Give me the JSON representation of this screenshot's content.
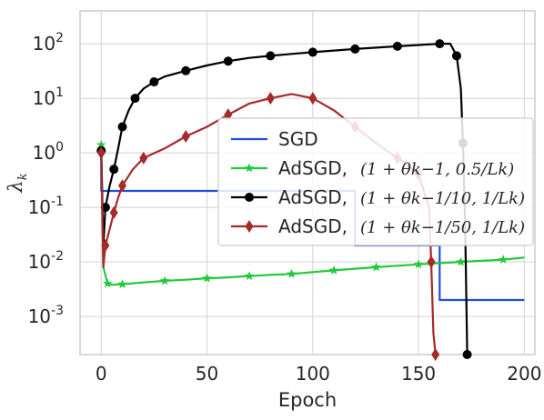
{
  "chart_data": {
    "type": "line",
    "title": "",
    "xlabel": "Epoch",
    "ylabel": "λ_k",
    "yscale": "log",
    "xlim": [
      -10,
      205
    ],
    "ylim": [
      0.0002,
      400
    ],
    "xticks": [
      0,
      50,
      100,
      150,
      200
    ],
    "xtick_labels": [
      "0",
      "50",
      "100",
      "150",
      "200"
    ],
    "yticks": [
      0.001,
      0.01,
      0.1,
      1,
      10,
      100
    ],
    "ytick_labels": [
      {
        "base": "10",
        "exp": "-3"
      },
      {
        "base": "10",
        "exp": "-2"
      },
      {
        "base": "10",
        "exp": "-1"
      },
      {
        "base": "10",
        "exp": "0"
      },
      {
        "base": "10",
        "exp": "1"
      },
      {
        "base": "10",
        "exp": "2"
      }
    ],
    "grid": true,
    "legend_position": "center-right",
    "series": [
      {
        "name": "SGD",
        "suffix": "",
        "color": "#1f4fd8",
        "marker": "none",
        "x": [
          0,
          0,
          120,
          120,
          160,
          160,
          200
        ],
        "y": [
          1.0,
          0.2,
          0.2,
          0.02,
          0.02,
          0.002,
          0.002
        ]
      },
      {
        "name": "AdSGD,",
        "suffix": "(1 + θk−1, 0.5/Lk)",
        "color": "#22c93a",
        "marker": "star",
        "x": [
          0,
          1,
          3,
          5,
          10,
          20,
          30,
          40,
          50,
          60,
          70,
          80,
          90,
          100,
          110,
          120,
          130,
          140,
          150,
          160,
          170,
          180,
          190,
          200
        ],
        "y": [
          1.4,
          0.008,
          0.004,
          0.0038,
          0.0039,
          0.0042,
          0.0045,
          0.0047,
          0.005,
          0.0052,
          0.0055,
          0.0058,
          0.006,
          0.0065,
          0.007,
          0.0075,
          0.008,
          0.0085,
          0.009,
          0.0095,
          0.01,
          0.0105,
          0.011,
          0.012
        ]
      },
      {
        "name": "AdSGD,",
        "suffix": "(1 + θk−1/10, 1/Lk)",
        "color": "#000000",
        "marker": "circle",
        "x": [
          0,
          1,
          2,
          4,
          6,
          8,
          10,
          13,
          16,
          20,
          25,
          30,
          40,
          50,
          60,
          70,
          80,
          90,
          100,
          110,
          120,
          130,
          140,
          150,
          160,
          165,
          168,
          170,
          171,
          172,
          173
        ],
        "y": [
          1.1,
          0.02,
          0.1,
          0.25,
          0.5,
          1.2,
          3,
          6,
          10,
          15,
          20,
          25,
          32,
          40,
          48,
          55,
          60,
          65,
          70,
          75,
          80,
          85,
          90,
          95,
          100,
          100,
          60,
          15,
          1.5,
          0.05,
          0.0002
        ]
      },
      {
        "name": "AdSGD,",
        "suffix": "(1 + θk−1/50, 1/Lk)",
        "color": "#a52a2a",
        "marker": "diamond",
        "x": [
          0,
          1,
          2,
          4,
          6,
          8,
          10,
          15,
          20,
          30,
          40,
          50,
          60,
          70,
          80,
          90,
          100,
          110,
          120,
          130,
          140,
          145,
          150,
          155,
          156,
          157,
          158
        ],
        "y": [
          1.0,
          0.008,
          0.02,
          0.04,
          0.08,
          0.15,
          0.25,
          0.5,
          0.8,
          1.2,
          2,
          3,
          5,
          8,
          10,
          12,
          10,
          6,
          3,
          1.5,
          0.8,
          0.6,
          0.4,
          0.1,
          0.01,
          0.0005,
          0.0002
        ]
      }
    ]
  }
}
